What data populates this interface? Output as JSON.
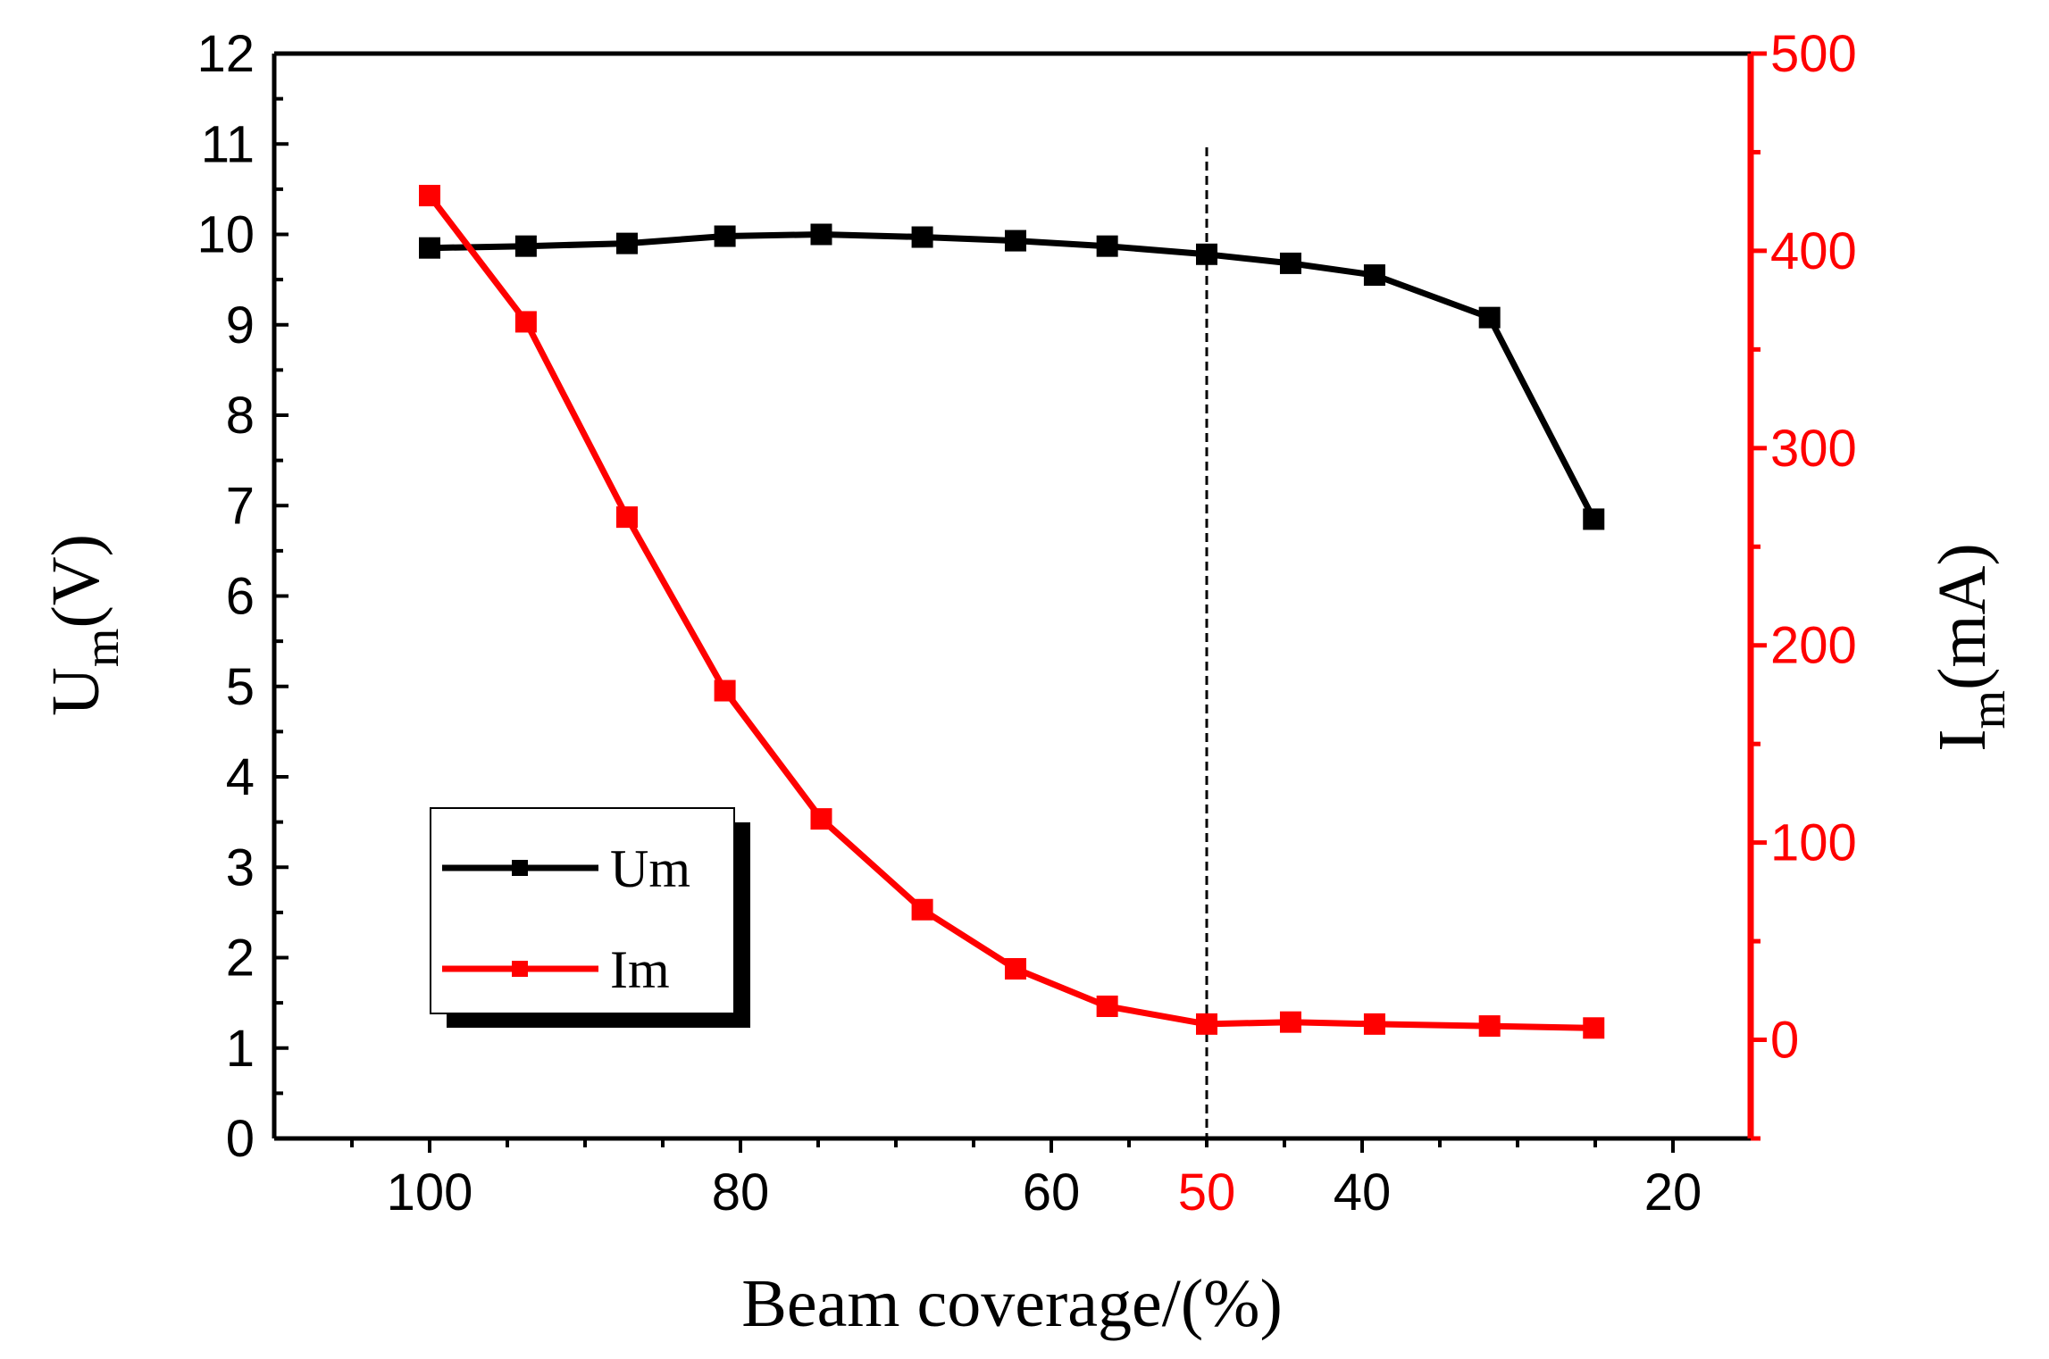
{
  "chart_data": {
    "type": "line",
    "title": "",
    "xlabel": "Beam coverage/(%)",
    "xlim": [
      110,
      15
    ],
    "x_ticks": [
      100,
      80,
      60,
      40,
      20
    ],
    "highlight_x": {
      "value": 50,
      "label": "50",
      "color": "#ff0000"
    },
    "left_axis": {
      "label_main": "U",
      "label_sub": "m",
      "label_unit": "(V)",
      "ylim": [
        0,
        12
      ],
      "ticks": [
        0,
        1,
        2,
        3,
        4,
        5,
        6,
        7,
        8,
        9,
        10,
        11,
        12
      ],
      "color": "#000000"
    },
    "right_axis": {
      "label_main": "I",
      "label_sub": "m",
      "label_unit": "(mA)",
      "ylim": [
        -50,
        500
      ],
      "ticks": [
        0,
        100,
        200,
        300,
        400,
        500
      ],
      "color": "#ff0000"
    },
    "series": [
      {
        "name": "Um",
        "axis": "left",
        "color": "#000000",
        "x": [
          100,
          93.8,
          87.3,
          81,
          74.8,
          68.3,
          62.3,
          56.4,
          50,
          44.6,
          39.2,
          31.8,
          25.1
        ],
        "values": [
          9.85,
          9.87,
          9.9,
          9.98,
          10.0,
          9.97,
          9.93,
          9.87,
          9.78,
          9.68,
          9.55,
          9.08,
          6.85
        ]
      },
      {
        "name": "Im",
        "axis": "right",
        "color": "#ff0000",
        "x": [
          100,
          93.8,
          87.3,
          81,
          74.8,
          68.3,
          62.3,
          56.4,
          50,
          44.6,
          39.2,
          31.8,
          25.1
        ],
        "values": [
          428,
          364,
          265,
          177,
          112,
          66,
          36,
          17,
          8,
          9,
          8,
          7,
          6
        ]
      }
    ],
    "legend": {
      "position": "bottom-left",
      "entries": [
        "Um",
        "Im"
      ]
    },
    "grid": false
  }
}
